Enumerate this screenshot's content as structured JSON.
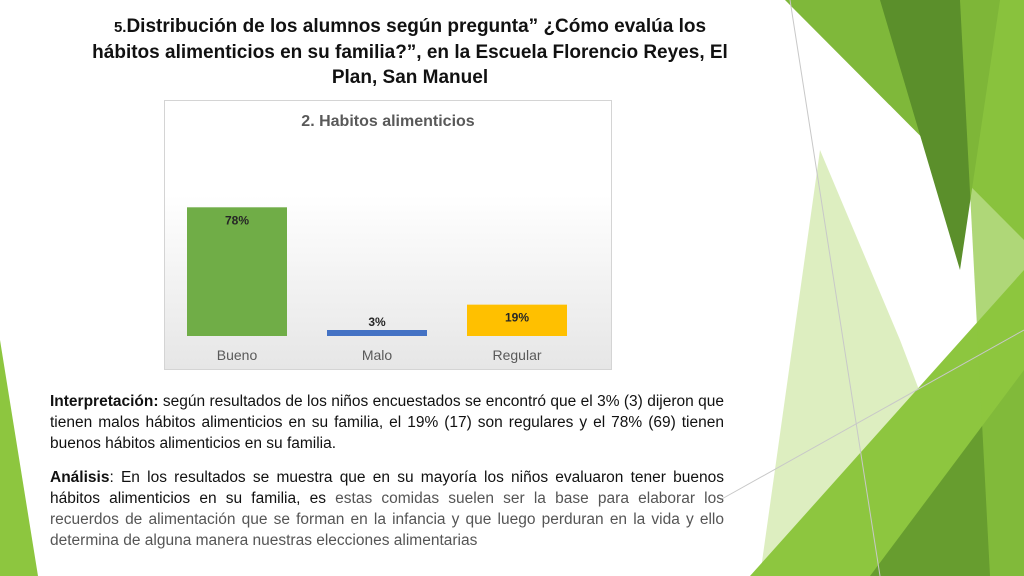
{
  "slide": {
    "title_number": "5.",
    "title_text": "Distribución de los alumnos según pregunta” ¿Cómo evalúa los hábitos alimenticios en su familia?”, en la Escuela Florencio Reyes, El Plan, San Manuel"
  },
  "interpretation": {
    "label": "Interpretación:",
    "text": " según resultados de los niños encuestados se encontró que el 3% (3) dijeron que tienen malos hábitos alimenticios en su familia, el 19% (17) son regulares y el 78% (69) tienen buenos hábitos alimenticios en su familia."
  },
  "analysis": {
    "label": "Análisis",
    "text_dark": ": En los resultados se muestra que en su mayoría los niños evaluaron tener buenos hábitos alimenticios en su familia, es",
    "text_muted": " estas comidas suelen ser la base para elaborar los recuerdos de alimentación que se forman en la infancia y que luego perduran en la vida y ello determina de alguna manera nuestras elecciones alimentarias"
  },
  "colors": {
    "bueno": "#70ad47",
    "malo": "#4472c4",
    "regular": "#ffc000",
    "accent_green_dark": "#5b8f2b",
    "accent_green": "#8dc63f",
    "accent_green_light": "#d7ebb5"
  },
  "chart_data": {
    "type": "bar",
    "title": "2. Habitos alimenticios",
    "categories": [
      "Bueno",
      "Malo",
      "Regular"
    ],
    "values": [
      78,
      3,
      19
    ],
    "value_labels": [
      "78%",
      "3%",
      "19%"
    ],
    "colors": [
      "#70ad47",
      "#4472c4",
      "#ffc000"
    ],
    "ylim": [
      0,
      100
    ],
    "grid": false,
    "legend": "none"
  }
}
